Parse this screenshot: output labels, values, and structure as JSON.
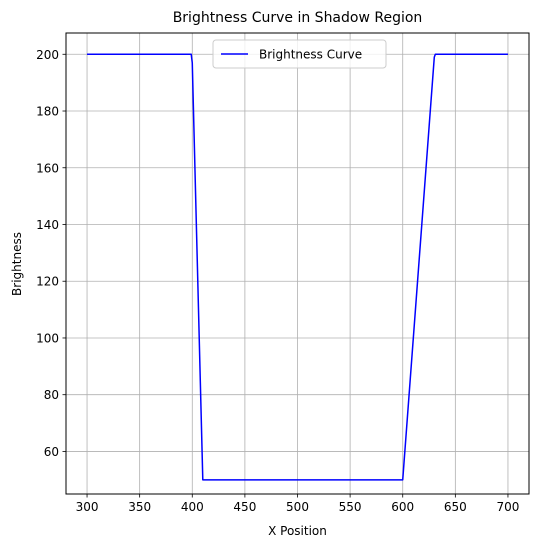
{
  "chart_data": {
    "type": "line",
    "title": "Brightness Curve in Shadow Region",
    "xlabel": "X Position",
    "ylabel": "Brightness",
    "xlim": [
      280,
      720
    ],
    "ylim": [
      45,
      207.5
    ],
    "xticks": [
      300,
      350,
      400,
      450,
      500,
      550,
      600,
      650,
      700
    ],
    "yticks": [
      60,
      80,
      100,
      120,
      140,
      160,
      180,
      200
    ],
    "grid": true,
    "legend": {
      "position": "top-center",
      "entries": [
        "Brightness Curve"
      ]
    },
    "series": [
      {
        "name": "Brightness Curve",
        "color": "#0000ff",
        "x": [
          300,
          399,
          400,
          410,
          600,
          630,
          631,
          700
        ],
        "y": [
          200,
          200,
          197,
          50,
          50,
          199,
          200,
          200
        ]
      }
    ]
  }
}
